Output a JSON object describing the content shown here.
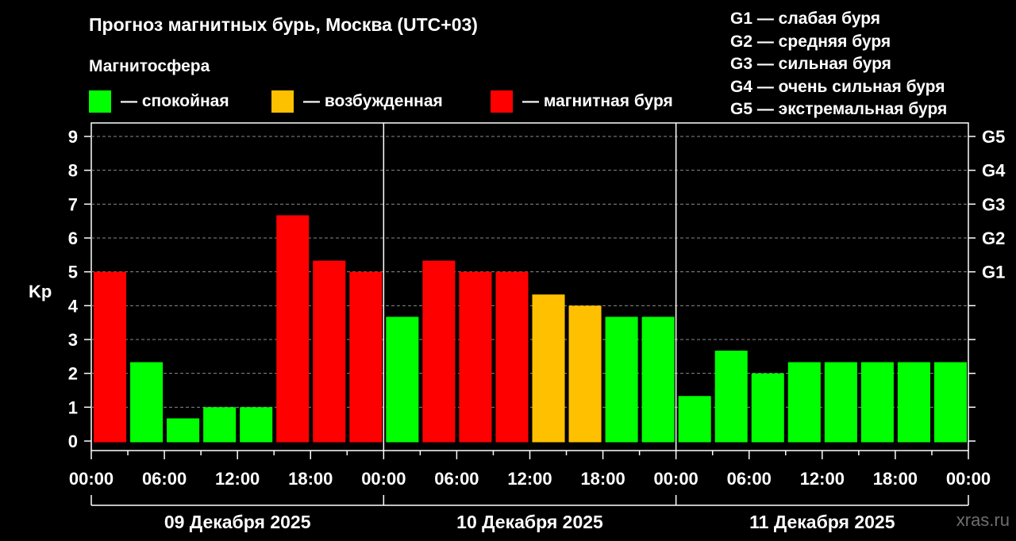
{
  "title": "Прогноз магнитных бурь, Москва (UTC+03)",
  "legend": {
    "title": "Магнитосфера",
    "items": [
      {
        "label": "— спокойная",
        "color": "#00ff00"
      },
      {
        "label": "— возбужденная",
        "color": "#ffc000"
      },
      {
        "label": "— магнитная буря",
        "color": "#ff0000"
      }
    ]
  },
  "g_legend": [
    "G1 — слабая буря",
    "G2 — средняя буря",
    "G3 — сильная буря",
    "G4 — очень сильная буря",
    "G5 — экстремальная буря"
  ],
  "watermark": "xras.ru",
  "chart_data": {
    "type": "bar",
    "ylabel": "Kp",
    "ylim": [
      0,
      9
    ],
    "yticks": [
      "0",
      "1",
      "2",
      "3",
      "4",
      "5",
      "6",
      "7",
      "8",
      "9"
    ],
    "g_ticks": [
      {
        "kp": 5,
        "label": "G1"
      },
      {
        "kp": 6,
        "label": "G2"
      },
      {
        "kp": 7,
        "label": "G3"
      },
      {
        "kp": 8,
        "label": "G4"
      },
      {
        "kp": 9,
        "label": "G5"
      }
    ],
    "xtick_labels": [
      "00:00",
      "06:00",
      "12:00",
      "18:00",
      "00:00",
      "06:00",
      "12:00",
      "18:00",
      "00:00",
      "06:00",
      "12:00",
      "18:00",
      "00:00"
    ],
    "days": [
      "09 Декабря 2025",
      "10 Декабря 2025",
      "11 Декабря 2025"
    ],
    "grid": true,
    "values": [
      5.0,
      2.33,
      0.67,
      1.0,
      1.0,
      6.67,
      5.33,
      5.0,
      3.67,
      5.33,
      5.0,
      5.0,
      4.33,
      4.0,
      3.67,
      3.67,
      1.33,
      2.67,
      2.0,
      2.33,
      2.33,
      2.33,
      2.33,
      2.33
    ],
    "status": [
      "storm",
      "quiet",
      "quiet",
      "quiet",
      "quiet",
      "storm",
      "storm",
      "storm",
      "quiet",
      "storm",
      "storm",
      "storm",
      "active",
      "active",
      "quiet",
      "quiet",
      "quiet",
      "quiet",
      "quiet",
      "quiet",
      "quiet",
      "quiet",
      "quiet",
      "quiet"
    ],
    "status_colors": {
      "quiet": "#00ff00",
      "active": "#ffc000",
      "storm": "#ff0000"
    }
  }
}
